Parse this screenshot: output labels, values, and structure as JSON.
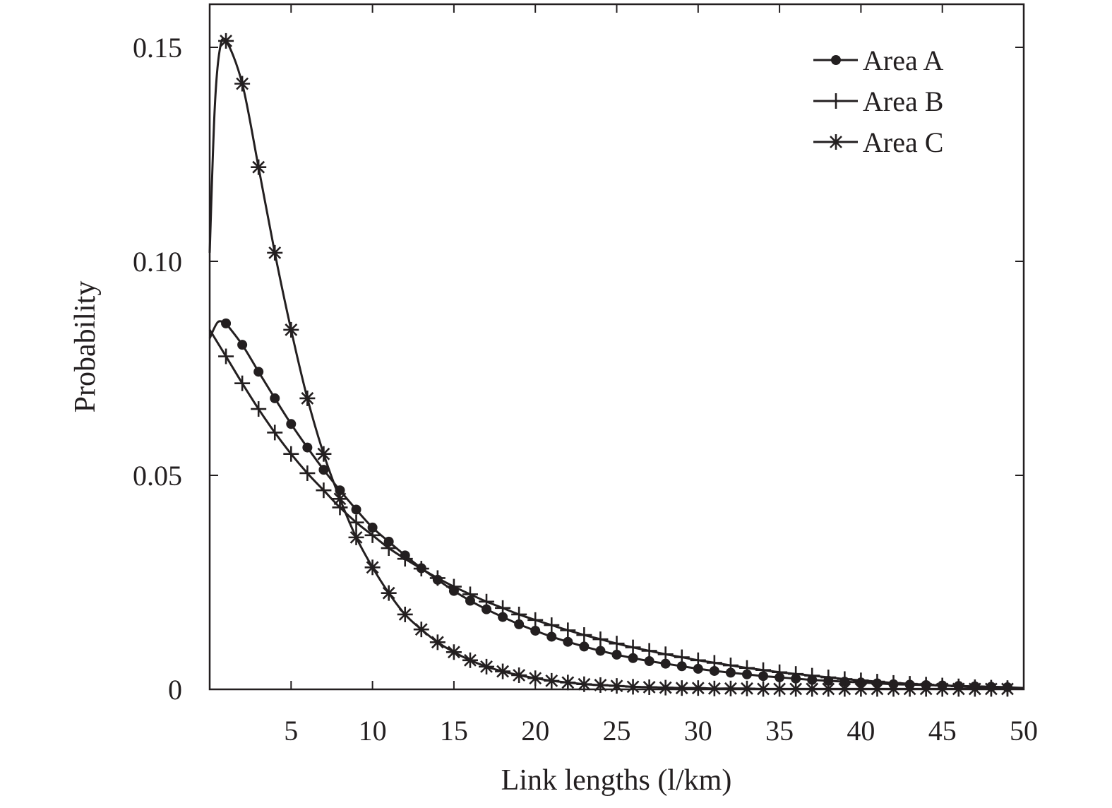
{
  "chart_data": {
    "type": "line",
    "title": "",
    "xlabel": "Link lengths (l/km)",
    "ylabel": "Probability",
    "xlim": [
      0,
      50
    ],
    "ylim": [
      0,
      0.16
    ],
    "xticks": [
      5,
      10,
      15,
      20,
      25,
      30,
      35,
      40,
      45,
      50
    ],
    "xtick_labels": [
      "5",
      "10",
      "15",
      "20",
      "25",
      "30",
      "35",
      "40",
      "45",
      "50"
    ],
    "yticks": [
      0,
      0.05,
      0.1,
      0.15
    ],
    "ytick_labels": [
      "0",
      "0.05",
      "0.10",
      "0.15"
    ],
    "grid": false,
    "legend_position": "top-right",
    "series": [
      {
        "name": "Area A",
        "marker": "dot",
        "curve_x": [
          0,
          0.5,
          1
        ],
        "curve_y": [
          0.082,
          0.0858,
          0.0855
        ],
        "x": [
          1,
          2,
          3,
          4,
          5,
          6,
          7,
          8,
          9,
          10,
          11,
          12,
          13,
          14,
          15,
          16,
          17,
          18,
          19,
          20,
          21,
          22,
          23,
          24,
          25,
          26,
          27,
          28,
          29,
          30,
          31,
          32,
          33,
          34,
          35,
          36,
          37,
          38,
          39,
          40,
          41,
          42,
          43,
          44,
          45,
          46,
          47,
          48,
          49
        ],
        "y": [
          0.0855,
          0.0805,
          0.0742,
          0.068,
          0.062,
          0.0565,
          0.0513,
          0.0465,
          0.042,
          0.0378,
          0.0345,
          0.0313,
          0.0283,
          0.0256,
          0.023,
          0.0207,
          0.0187,
          0.0169,
          0.0152,
          0.0137,
          0.0123,
          0.0111,
          0.01,
          0.009,
          0.0081,
          0.0073,
          0.0066,
          0.006,
          0.0054,
          0.0048,
          0.0043,
          0.0039,
          0.0035,
          0.0031,
          0.0028,
          0.0025,
          0.0022,
          0.002,
          0.0018,
          0.0016,
          0.0014,
          0.0012,
          0.0011,
          0.001,
          0.0009,
          0.0008,
          0.0007,
          0.0006,
          0.0005
        ]
      },
      {
        "name": "Area B",
        "marker": "plus",
        "curve_x": [
          0
        ],
        "curve_y": [
          0.084
        ],
        "x": [
          1,
          2,
          3,
          4,
          5,
          6,
          7,
          8,
          9,
          10,
          11,
          12,
          13,
          14,
          15,
          16,
          17,
          18,
          19,
          20,
          21,
          22,
          23,
          24,
          25,
          26,
          27,
          28,
          29,
          30,
          31,
          32,
          33,
          34,
          35,
          36,
          37,
          38,
          39,
          40,
          41,
          42,
          43,
          44,
          45,
          46,
          47,
          48,
          49
        ],
        "y": [
          0.0778,
          0.0715,
          0.0655,
          0.06,
          0.055,
          0.0505,
          0.0465,
          0.0425,
          0.039,
          0.036,
          0.033,
          0.0305,
          0.0282,
          0.026,
          0.024,
          0.0222,
          0.0205,
          0.019,
          0.0175,
          0.0162,
          0.015,
          0.0138,
          0.0127,
          0.0117,
          0.0107,
          0.0098,
          0.009,
          0.0082,
          0.0075,
          0.0068,
          0.0062,
          0.0056,
          0.005,
          0.0045,
          0.004,
          0.0036,
          0.0032,
          0.0028,
          0.0024,
          0.0021,
          0.0018,
          0.0015,
          0.0013,
          0.0011,
          0.0009,
          0.0007,
          0.0005,
          0.0004,
          0.0003
        ]
      },
      {
        "name": "Area C",
        "marker": "asterisk",
        "curve_x": [
          0,
          0.3,
          0.6
        ],
        "curve_y": [
          0.102,
          0.135,
          0.149
        ],
        "x": [
          1,
          2,
          3,
          4,
          5,
          6,
          7,
          8,
          9,
          10,
          11,
          12,
          13,
          14,
          15,
          16,
          17,
          18,
          19,
          20,
          21,
          22,
          23,
          24,
          25,
          26,
          27,
          28,
          29,
          30,
          31,
          32,
          33,
          34,
          35,
          36,
          37,
          38,
          39,
          40,
          41,
          42,
          43,
          44,
          45,
          46,
          47,
          48,
          49
        ],
        "y": [
          0.1515,
          0.1415,
          0.122,
          0.102,
          0.084,
          0.068,
          0.055,
          0.0445,
          0.0355,
          0.0285,
          0.0225,
          0.0175,
          0.014,
          0.011,
          0.0087,
          0.0068,
          0.0053,
          0.0042,
          0.0033,
          0.0026,
          0.002,
          0.0016,
          0.0012,
          0.001,
          0.0008,
          0.0006,
          0.0005,
          0.0004,
          0.0003,
          0.0003,
          0.0002,
          0.0002,
          0.0002,
          0.0001,
          0.0001,
          0.0001,
          0.0001,
          0.0001,
          0.0001,
          0.0001,
          0.0001,
          0.0001,
          0.0001,
          0.0001,
          0.0001,
          0.0001,
          0.0001,
          0.0001,
          0.0001
        ]
      }
    ]
  }
}
